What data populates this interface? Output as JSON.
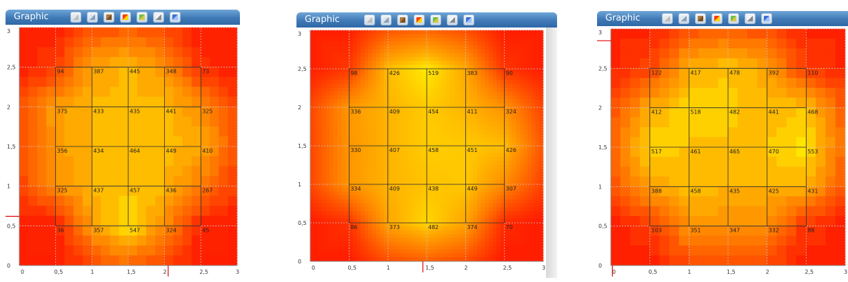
{
  "panels": [
    {
      "title": "Graphic",
      "toolbar": [
        "bulb-icon",
        "list-icon",
        "frame-icon",
        "color-squares-icon",
        "map-icon",
        "grid-icon",
        "monitor-icon"
      ],
      "style": "banded"
    },
    {
      "title": "Graphic",
      "toolbar": [
        "bulb-icon",
        "list-icon",
        "frame-icon",
        "color-squares-icon",
        "map-icon",
        "grid-icon",
        "monitor-icon"
      ],
      "style": "smooth"
    },
    {
      "title": "Graphic",
      "toolbar": [
        "bulb-icon",
        "list-icon",
        "frame-icon",
        "color-squares-icon",
        "map-icon",
        "grid-icon",
        "monitor-icon"
      ],
      "style": "banded"
    }
  ],
  "colors": {
    "low": "#ff2a00",
    "mid": "#ff9a00",
    "high": "#ffee00",
    "grid": "#b0b0b0",
    "mesh": "#000000"
  },
  "chart_data": [
    {
      "type": "heatmap",
      "title": "",
      "xlabel": "",
      "ylabel": "",
      "xlim": [
        0,
        3
      ],
      "ylim": [
        0,
        3
      ],
      "x_ticks": [
        "0",
        "0,5",
        "1",
        "1,5",
        "2",
        "2,5",
        "3"
      ],
      "y_ticks": [
        "0",
        "0,5",
        "1",
        "1,5",
        "2",
        "2,5",
        "3"
      ],
      "x": [
        0.5,
        1,
        1.5,
        2,
        2.5
      ],
      "y": [
        2.5,
        2,
        1.5,
        1,
        0.5
      ],
      "values": [
        [
          94,
          387,
          445,
          348,
          73
        ],
        [
          375,
          433,
          435,
          441,
          325
        ],
        [
          356,
          434,
          464,
          449,
          410
        ],
        [
          325,
          437,
          457,
          436,
          267
        ],
        [
          36,
          357,
          547,
          324,
          45
        ]
      ],
      "cell_labels": [
        [
          "94",
          "387",
          "445",
          "348",
          "73"
        ],
        [
          "375",
          "433",
          "435",
          "441",
          "325"
        ],
        [
          "356",
          "434",
          "464",
          "449",
          "410"
        ],
        [
          "325",
          "437",
          "457",
          "436",
          "267"
        ],
        [
          "36",
          "357",
          "547",
          "324",
          "45"
        ]
      ],
      "grid": true,
      "marker_x": 2.05,
      "marker_y": 0.62
    },
    {
      "type": "heatmap",
      "title": "",
      "xlabel": "",
      "ylabel": "",
      "xlim": [
        0,
        3
      ],
      "ylim": [
        0,
        3
      ],
      "x_ticks": [
        "0",
        "0,5",
        "1",
        "1,5",
        "2",
        "2,5",
        "3"
      ],
      "y_ticks": [
        "0",
        "0,5",
        "1",
        "1,5",
        "2",
        "2,5",
        "3"
      ],
      "x": [
        0.5,
        1,
        1.5,
        2,
        2.5
      ],
      "y": [
        2.5,
        2,
        1.5,
        1,
        0.5
      ],
      "values": [
        [
          98,
          426,
          519,
          383,
          90
        ],
        [
          336,
          409,
          454,
          411,
          324
        ],
        [
          330,
          407,
          458,
          451,
          426
        ],
        [
          334,
          409,
          438,
          449,
          307
        ],
        [
          86,
          373,
          482,
          374,
          70
        ]
      ],
      "cell_labels": [
        [
          "98",
          "426",
          "519",
          "383",
          "90"
        ],
        [
          "336",
          "409",
          "454",
          "411",
          "324"
        ],
        [
          "330",
          "407",
          "458",
          "451",
          "426"
        ],
        [
          "334",
          "409",
          "438",
          "449",
          "307"
        ],
        [
          "86",
          "373",
          "482",
          "374",
          "70"
        ]
      ],
      "grid": true,
      "marker_x": 1.45
    },
    {
      "type": "heatmap",
      "title": "",
      "xlabel": "",
      "ylabel": "",
      "xlim": [
        0,
        3
      ],
      "ylim": [
        0,
        3
      ],
      "x_ticks": [
        "0",
        "0,5",
        "1",
        "1,5",
        "2",
        "2,5",
        "3"
      ],
      "y_ticks": [
        "0",
        "0,5",
        "1",
        "1,5",
        "2",
        "2,5",
        "3"
      ],
      "x": [
        0.5,
        1,
        1.5,
        2,
        2.5
      ],
      "y": [
        2.5,
        2,
        1.5,
        1,
        0.5
      ],
      "values": [
        [
          122,
          417,
          478,
          392,
          110
        ],
        [
          412,
          518,
          482,
          441,
          468
        ],
        [
          517,
          461,
          465,
          470,
          553
        ],
        [
          388,
          458,
          435,
          425,
          431
        ],
        [
          103,
          351,
          347,
          332,
          88
        ]
      ],
      "cell_labels": [
        [
          "122",
          "417",
          "478",
          "392",
          "110"
        ],
        [
          "412",
          "518",
          "482",
          "441",
          "468"
        ],
        [
          "517",
          "461",
          "465",
          "470",
          "553"
        ],
        [
          "388",
          "458",
          "435",
          "425",
          "431"
        ],
        [
          "103",
          "351",
          "347",
          "332",
          "88"
        ]
      ],
      "grid": true,
      "marker_x": 0.02,
      "marker_y": 2.85
    }
  ]
}
